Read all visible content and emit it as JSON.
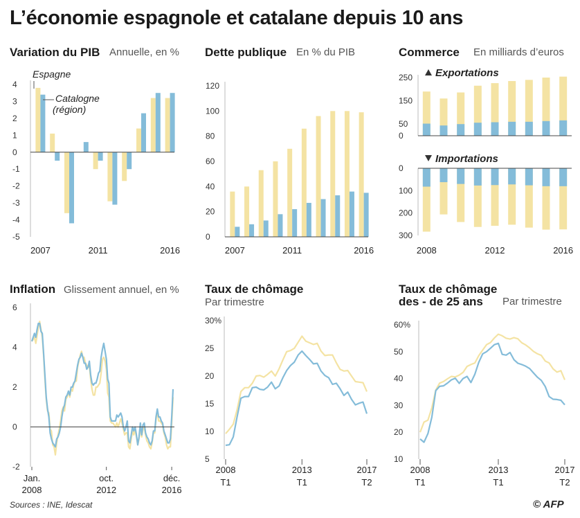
{
  "title": "L’économie espagnole et catalane depuis 10 ans",
  "sources": "Sources : INE, Idescat",
  "credit": "© AFP",
  "colors": {
    "spain": "#f4e3a3",
    "catalonia": "#84bcd9",
    "axis": "#bbbbbb",
    "zero": "#444444"
  },
  "panels": {
    "pib": {
      "title": "Variation du PIB",
      "subtitle": "Annuelle, en %"
    },
    "dette": {
      "title": "Dette publique",
      "subtitle": "En % du PIB"
    },
    "commerce": {
      "title": "Commerce",
      "subtitle": "En milliards d’euros"
    },
    "inflation": {
      "title": "Inflation",
      "subtitle": "Glissement annuel, en %"
    },
    "chomage": {
      "title": "Taux de chômage",
      "subtitle": "Par trimestre"
    },
    "chomage25": {
      "title": "Taux de chômage",
      "title2": "des - de 25 ans",
      "subtitle": "Par trimestre"
    }
  },
  "chart_data": [
    {
      "id": "pib",
      "type": "bar",
      "title": "Variation du PIB",
      "subtitle": "Annuelle, en %",
      "categories": [
        "2007",
        "2008",
        "2009",
        "2010",
        "2011",
        "2012",
        "2013",
        "2014",
        "2015",
        "2016"
      ],
      "x_ticks": [
        "2007",
        "2011",
        "2016"
      ],
      "y_ticks": [
        "4",
        "3",
        "2",
        "1",
        "0",
        "-1",
        "-2",
        "-3",
        "-4",
        "-5"
      ],
      "ylim": [
        -5,
        4.2
      ],
      "annotations": [
        "Espagne",
        "Catalogne",
        "(région)"
      ],
      "series": [
        {
          "name": "Espagne",
          "values": [
            3.8,
            1.1,
            -3.6,
            0.0,
            -1.0,
            -2.9,
            -1.7,
            1.4,
            3.2,
            3.2
          ]
        },
        {
          "name": "Catalogne",
          "values": [
            3.4,
            -0.5,
            -4.2,
            0.6,
            -0.5,
            -3.1,
            -1.0,
            2.3,
            3.5,
            3.5
          ]
        }
      ]
    },
    {
      "id": "dette",
      "type": "bar",
      "title": "Dette publique",
      "subtitle": "En % du PIB",
      "categories": [
        "2007",
        "2008",
        "2009",
        "2010",
        "2011",
        "2012",
        "2013",
        "2014",
        "2015",
        "2016"
      ],
      "x_ticks": [
        "2007",
        "2011",
        "2016"
      ],
      "y_ticks": [
        "120",
        "100",
        "80",
        "60",
        "40",
        "20",
        "0"
      ],
      "ylim": [
        0,
        120
      ],
      "series": [
        {
          "name": "Espagne",
          "values": [
            36,
            40,
            53,
            60,
            70,
            86,
            96,
            100,
            100,
            99
          ]
        },
        {
          "name": "Catalogne",
          "values": [
            8,
            10,
            13,
            18,
            22,
            27,
            30,
            33,
            36,
            35
          ]
        }
      ]
    },
    {
      "id": "exportations",
      "type": "bar",
      "title": "Commerce",
      "subtitle": "En milliards d’euros",
      "label": "Exportations",
      "categories": [
        "2008",
        "2009",
        "2010",
        "2011",
        "2012",
        "2013",
        "2014",
        "2015",
        "2016"
      ],
      "x_ticks": [
        "2008",
        "2012",
        "2016"
      ],
      "y_ticks": [
        "250",
        "150",
        "50",
        "0"
      ],
      "ylim": [
        0,
        260
      ],
      "series": [
        {
          "name": "Espagne",
          "values": [
            190,
            160,
            186,
            215,
            226,
            235,
            240,
            250,
            254
          ]
        },
        {
          "name": "Catalogne",
          "values": [
            52,
            44,
            50,
            56,
            58,
            60,
            60,
            63,
            66
          ]
        }
      ]
    },
    {
      "id": "importations",
      "type": "bar",
      "label": "Importations",
      "categories": [
        "2008",
        "2009",
        "2010",
        "2011",
        "2012",
        "2013",
        "2014",
        "2015",
        "2016"
      ],
      "y_ticks": [
        "0",
        "100",
        "200",
        "300"
      ],
      "ylim": [
        0,
        300
      ],
      "series": [
        {
          "name": "Espagne",
          "values": [
            283,
            206,
            240,
            262,
            257,
            252,
            265,
            274,
            273
          ]
        },
        {
          "name": "Catalogne",
          "values": [
            82,
            62,
            70,
            77,
            75,
            72,
            76,
            80,
            80
          ]
        }
      ]
    },
    {
      "id": "inflation",
      "type": "line",
      "title": "Inflation",
      "subtitle": "Glissement annuel, en %",
      "x_ticks": [
        {
          "line1": "Jan.",
          "line2": "2008",
          "pos": 0
        },
        {
          "line1": "oct.",
          "line2": "2012",
          "pos": 57
        },
        {
          "line1": "déc.",
          "line2": "2016",
          "pos": 107
        }
      ],
      "y_ticks": [
        "6",
        "4",
        "2",
        "0",
        "-2"
      ],
      "ylim": [
        -2,
        6
      ],
      "series": [
        {
          "name": "Espagne",
          "values": [
            4.3,
            4.4,
            4.5,
            4.2,
            4.6,
            5.0,
            5.3,
            4.9,
            4.5,
            3.6,
            2.4,
            1.4,
            0.8,
            0.7,
            -0.1,
            -0.2,
            -0.9,
            -1.0,
            -1.4,
            -0.8,
            -0.4,
            -0.1,
            0.3,
            0.8,
            1.0,
            0.8,
            1.4,
            1.5,
            1.8,
            1.5,
            1.9,
            1.8,
            2.1,
            2.3,
            2.3,
            3.0,
            3.3,
            3.6,
            3.8,
            3.5,
            3.5,
            3.2,
            3.1,
            3.0,
            3.1,
            2.4,
            1.9,
            1.6,
            1.6,
            2.0,
            2.0,
            2.1,
            2.2,
            2.7,
            3.4,
            3.5,
            3.3,
            2.9,
            1.7,
            1.5,
            0.3,
            0.2,
            0.2,
            0.1,
            0.0,
            0.2,
            0.0,
            0.2,
            0.4,
            0.2,
            -0.1,
            -0.4,
            -0.3,
            -0.3,
            -1.0,
            -1.1,
            -0.6,
            -0.2,
            -0.4,
            -0.1,
            -0.5,
            -0.9,
            -0.6,
            0.0,
            -0.5,
            -0.1,
            0.0,
            -0.4,
            -0.7,
            -0.8,
            -1.0,
            -1.1,
            -0.8,
            -0.3,
            -0.3,
            0.4,
            0.8,
            0.3,
            0.3,
            0.2,
            0.1,
            -0.3,
            -0.5,
            -0.9,
            -1.1,
            -1.0,
            -1.0,
            0.2,
            1.5
          ]
        },
        {
          "name": "Catalogne",
          "values": [
            4.3,
            4.5,
            4.7,
            4.5,
            4.9,
            5.2,
            5.2,
            4.8,
            4.7,
            3.7,
            2.6,
            1.5,
            0.9,
            0.5,
            -0.3,
            -0.6,
            -0.8,
            -0.9,
            -1.0,
            -0.6,
            -0.5,
            -0.3,
            0.0,
            0.5,
            0.9,
            1.1,
            1.5,
            1.6,
            1.8,
            1.6,
            2.0,
            2.0,
            2.2,
            2.3,
            2.7,
            3.1,
            3.4,
            3.5,
            3.7,
            3.5,
            3.2,
            3.2,
            2.9,
            3.0,
            3.3,
            2.6,
            2.2,
            2.1,
            2.2,
            2.2,
            2.4,
            2.7,
            2.8,
            3.5,
            3.9,
            4.2,
            3.8,
            3.4,
            2.4,
            2.2,
            0.5,
            0.3,
            0.3,
            0.3,
            0.3,
            0.6,
            0.5,
            0.6,
            0.7,
            0.5,
            0.0,
            -0.2,
            0.0,
            0.3,
            -0.7,
            -0.8,
            -0.4,
            0.0,
            -0.2,
            0.0,
            -0.4,
            -0.9,
            -0.5,
            0.2,
            -0.4,
            0.1,
            0.2,
            -0.3,
            -0.5,
            -0.6,
            -0.8,
            -0.9,
            -0.7,
            -0.2,
            -0.2,
            0.5,
            0.9,
            0.5,
            0.5,
            0.3,
            0.2,
            -0.2,
            -0.4,
            -0.6,
            -0.8,
            -0.8,
            -0.6,
            0.5,
            1.9
          ]
        }
      ]
    },
    {
      "id": "chomage",
      "type": "line",
      "title": "Taux de chômage",
      "subtitle": "Par trimestre",
      "x_ticks": [
        {
          "line1": "2008",
          "line2": "T1",
          "pos": 0
        },
        {
          "line1": "2013",
          "line2": "T1",
          "pos": 20
        },
        {
          "line1": "2017",
          "line2": "T2",
          "pos": 37
        }
      ],
      "y_ticks": [
        "30%",
        "25",
        "20",
        "15",
        "10",
        "5"
      ],
      "ylim": [
        5,
        30
      ],
      "series": [
        {
          "name": "Espagne",
          "values": [
            9.6,
            10.4,
            11.3,
            13.9,
            17.2,
            17.9,
            17.9,
            18.7,
            20.0,
            20.1,
            19.8,
            20.3,
            20.9,
            20.0,
            21.3,
            22.9,
            24.4,
            24.6,
            25.0,
            26.1,
            27.2,
            26.3,
            26.0,
            25.7,
            25.9,
            24.5,
            23.7,
            23.8,
            23.8,
            22.4,
            21.2,
            20.9,
            21.0,
            20.0,
            19.0,
            18.9,
            18.8,
            17.2
          ]
        },
        {
          "name": "Catalogne",
          "values": [
            7.5,
            7.6,
            9.0,
            12.6,
            16.0,
            16.3,
            16.3,
            17.9,
            18.0,
            17.6,
            17.5,
            18.0,
            18.9,
            17.7,
            18.2,
            19.7,
            21.0,
            21.9,
            22.5,
            23.8,
            24.5,
            23.7,
            23.0,
            22.2,
            22.3,
            20.9,
            20.1,
            19.7,
            18.5,
            18.7,
            17.7,
            16.5,
            17.1,
            15.8,
            14.8,
            15.1,
            15.3,
            13.2
          ]
        }
      ]
    },
    {
      "id": "chomage25",
      "type": "line",
      "title": "Taux de chômage des - de 25 ans",
      "subtitle": "Par trimestre",
      "x_ticks": [
        {
          "line1": "2008",
          "line2": "T1",
          "pos": 0
        },
        {
          "line1": "2013",
          "line2": "T1",
          "pos": 20
        },
        {
          "line1": "2017",
          "line2": "T2",
          "pos": 37
        }
      ],
      "y_ticks": [
        "60%",
        "50",
        "40",
        "30",
        "20",
        "10"
      ],
      "ylim": [
        10,
        60
      ],
      "series": [
        {
          "name": "Espagne",
          "values": [
            20.0,
            23.8,
            24.5,
            29.1,
            35.7,
            38.3,
            38.9,
            39.9,
            40.8,
            40.6,
            41.3,
            42.3,
            44.5,
            45.2,
            45.8,
            48.5,
            50.6,
            52.6,
            53.4,
            55.1,
            56.5,
            55.9,
            55.0,
            54.7,
            55.2,
            54.8,
            53.3,
            52.5,
            51.4,
            50.1,
            49.2,
            48.6,
            46.5,
            45.8,
            43.6,
            42.4,
            42.9,
            39.5
          ]
        },
        {
          "name": "Catalogne",
          "values": [
            17.5,
            16.3,
            19.5,
            25.6,
            35.5,
            37.1,
            37.3,
            38.3,
            39.5,
            40.1,
            38.2,
            40.0,
            40.8,
            38.5,
            41.6,
            46.0,
            49.2,
            50.0,
            51.3,
            52.6,
            53.1,
            49.0,
            48.7,
            49.7,
            47.0,
            45.7,
            45.2,
            44.6,
            43.7,
            42.1,
            40.5,
            39.3,
            37.0,
            33.3,
            32.3,
            32.2,
            31.9,
            30.2
          ]
        }
      ]
    }
  ]
}
